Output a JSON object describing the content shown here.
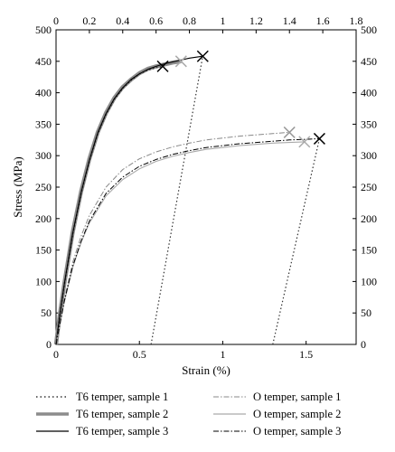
{
  "chart_data": {
    "type": "line",
    "xlabel": "Strain (%)",
    "ylabel": "Stress (MPa)",
    "x_bottom": {
      "range": [
        0,
        1.8
      ],
      "ticks": [
        0,
        0.5,
        1,
        1.5
      ],
      "tick_labels": [
        "0",
        "0.5",
        "1",
        "1.5"
      ]
    },
    "x_top": {
      "range": [
        0,
        1.8
      ],
      "ticks": [
        0,
        0.2,
        0.4,
        0.6,
        0.8,
        1,
        1.2,
        1.4,
        1.6,
        1.8
      ],
      "tick_labels": [
        "0",
        "0.2",
        "0.4",
        "0.6",
        "0.8",
        "1",
        "1.2",
        "1.4",
        "1.6",
        "1.8"
      ]
    },
    "y": {
      "range": [
        0,
        500
      ],
      "ticks": [
        0,
        50,
        100,
        150,
        200,
        250,
        300,
        350,
        400,
        450,
        500
      ],
      "tick_labels": [
        "0",
        "50",
        "100",
        "150",
        "200",
        "250",
        "300",
        "350",
        "400",
        "450",
        "500"
      ]
    },
    "grid": false,
    "legend_position": "bottom",
    "series": [
      {
        "name": "T6 temper, sample 1",
        "style": "dotted",
        "color": "#333333",
        "x": [
          0,
          0.02,
          0.05,
          0.1,
          0.15,
          0.2,
          0.25,
          0.3,
          0.35,
          0.4,
          0.45,
          0.5,
          0.55,
          0.6,
          0.64
        ],
        "y": [
          0,
          42,
          95,
          175,
          240,
          292,
          335,
          366,
          390,
          407,
          420,
          430,
          436,
          440,
          442
        ]
      },
      {
        "name": "T6 temper, sample 2",
        "style": "thick",
        "color": "#8c8c8c",
        "x": [
          0,
          0.02,
          0.05,
          0.1,
          0.15,
          0.2,
          0.25,
          0.3,
          0.35,
          0.4,
          0.45,
          0.5,
          0.55,
          0.6,
          0.65,
          0.7,
          0.75
        ],
        "y": [
          0,
          43,
          97,
          178,
          243,
          295,
          337,
          368,
          392,
          409,
          421,
          431,
          438,
          442,
          445,
          448,
          450
        ]
      },
      {
        "name": "T6 temper, sample 3",
        "style": "solid",
        "color": "#000000",
        "x": [
          0,
          0.02,
          0.05,
          0.1,
          0.15,
          0.2,
          0.25,
          0.3,
          0.35,
          0.4,
          0.45,
          0.5,
          0.55,
          0.6,
          0.65,
          0.7,
          0.75,
          0.8,
          0.88
        ],
        "y": [
          0,
          42,
          96,
          176,
          241,
          293,
          336,
          367,
          391,
          408,
          421,
          430,
          437,
          442,
          446,
          449,
          452,
          455,
          458
        ]
      },
      {
        "name": "O temper, sample 1",
        "style": "dashdot-light",
        "color": "#888888",
        "x": [
          0,
          0.05,
          0.1,
          0.15,
          0.2,
          0.3,
          0.4,
          0.5,
          0.6,
          0.7,
          0.8,
          0.9,
          1.0,
          1.1,
          1.2,
          1.3,
          1.4
        ],
        "y": [
          0,
          72,
          130,
          172,
          205,
          250,
          278,
          295,
          306,
          314,
          320,
          325,
          328,
          331,
          333,
          335,
          337
        ]
      },
      {
        "name": "O temper, sample 2",
        "style": "solid-light",
        "color": "#aaaaaa",
        "x": [
          0,
          0.05,
          0.1,
          0.15,
          0.2,
          0.3,
          0.4,
          0.5,
          0.6,
          0.7,
          0.8,
          0.9,
          1.0,
          1.1,
          1.2,
          1.3,
          1.4,
          1.49
        ],
        "y": [
          0,
          68,
          122,
          162,
          193,
          236,
          262,
          279,
          291,
          299,
          305,
          310,
          313,
          316,
          318,
          320,
          321,
          322
        ]
      },
      {
        "name": "O temper, sample 3",
        "style": "dashdot",
        "color": "#000000",
        "x": [
          0,
          0.05,
          0.1,
          0.15,
          0.2,
          0.3,
          0.4,
          0.5,
          0.6,
          0.7,
          0.8,
          0.9,
          1.0,
          1.1,
          1.2,
          1.3,
          1.4,
          1.5,
          1.58
        ],
        "y": [
          0,
          69,
          124,
          164,
          196,
          240,
          266,
          283,
          294,
          302,
          308,
          313,
          316,
          319,
          321,
          323,
          325,
          326,
          327
        ]
      }
    ],
    "unloading_lines": [
      {
        "x": [
          0.57,
          0.88
        ],
        "y": [
          0,
          458
        ]
      },
      {
        "x": [
          1.3,
          1.58
        ],
        "y": [
          0,
          327
        ]
      }
    ],
    "fracture_markers": [
      {
        "x": 0.64,
        "y": 442,
        "color": "#000000"
      },
      {
        "x": 0.75,
        "y": 450,
        "color": "#aaaaaa"
      },
      {
        "x": 0.88,
        "y": 458,
        "color": "#000000"
      },
      {
        "x": 1.4,
        "y": 337,
        "color": "#999999"
      },
      {
        "x": 1.49,
        "y": 322,
        "color": "#aaaaaa"
      },
      {
        "x": 1.58,
        "y": 327,
        "color": "#000000"
      }
    ]
  }
}
